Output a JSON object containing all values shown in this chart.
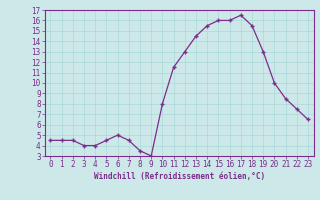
{
  "x": [
    0,
    1,
    2,
    3,
    4,
    5,
    6,
    7,
    8,
    9,
    10,
    11,
    12,
    13,
    14,
    15,
    16,
    17,
    18,
    19,
    20,
    21,
    22,
    23
  ],
  "y": [
    4.5,
    4.5,
    4.5,
    4.0,
    4.0,
    4.5,
    5.0,
    4.5,
    3.5,
    3.0,
    8.0,
    11.5,
    13.0,
    14.5,
    15.5,
    16.0,
    16.0,
    16.5,
    15.5,
    13.0,
    10.0,
    8.5,
    7.5,
    6.5
  ],
  "line_color": "#7b2d8b",
  "marker": "+",
  "marker_size": 3.5,
  "linewidth": 0.9,
  "xlabel": "Windchill (Refroidissement éolien,°C)",
  "xlabel_fontsize": 5.5,
  "ylim": [
    3,
    17
  ],
  "xlim": [
    -0.5,
    23.5
  ],
  "yticks": [
    3,
    4,
    5,
    6,
    7,
    8,
    9,
    10,
    11,
    12,
    13,
    14,
    15,
    16,
    17
  ],
  "xtick_labels": [
    "0",
    "1",
    "2",
    "3",
    "4",
    "5",
    "6",
    "7",
    "8",
    "9",
    "10",
    "11",
    "12",
    "13",
    "14",
    "15",
    "16",
    "17",
    "18",
    "19",
    "20",
    "21",
    "22",
    "23"
  ],
  "xticks": [
    0,
    1,
    2,
    3,
    4,
    5,
    6,
    7,
    8,
    9,
    10,
    11,
    12,
    13,
    14,
    15,
    16,
    17,
    18,
    19,
    20,
    21,
    22,
    23
  ],
  "tick_fontsize": 5.5,
  "grid_color": "#aadada",
  "background_color": "#cce8e8",
  "figure_color": "#cce8e8",
  "spine_color": "#7b2d8b"
}
